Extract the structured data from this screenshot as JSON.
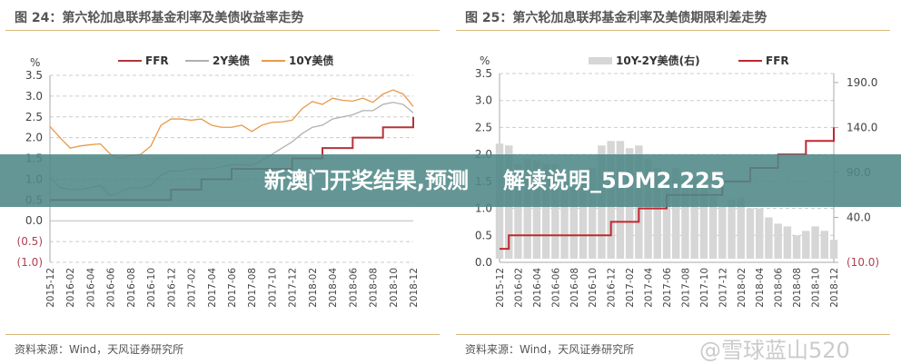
{
  "banner": {
    "text": "新澳门开奖结果,预测解读说明_5DM2.225"
  },
  "watermark": "@雪球蓝山520",
  "chart_data": [
    {
      "type": "line",
      "title": "图 24：第六轮加息联邦基金利率及美债收益率走势",
      "ylabel": "%",
      "ylim": [
        -1.0,
        3.5
      ],
      "yticks": [
        "3.5",
        "3.0",
        "2.5",
        "2.0",
        "1.5",
        "1.0",
        "0.5",
        "0.0",
        "(0.5)",
        "(1.0)"
      ],
      "xticks": [
        "2015-12",
        "2016-02",
        "2016-04",
        "2016-06",
        "2016-08",
        "2016-10",
        "2016-12",
        "2017-02",
        "2017-04",
        "2017-06",
        "2017-08",
        "2017-10",
        "2017-12",
        "2018-02",
        "2018-04",
        "2018-06",
        "2018-08",
        "2018-10",
        "2018-12"
      ],
      "legend": "top",
      "grid": true,
      "source": "资料来源：Wind，天风证券研究所",
      "series": [
        {
          "name": "FFR",
          "color": "#b5343a",
          "step": true,
          "values": [
            0.5,
            0.5,
            0.5,
            0.5,
            0.5,
            0.5,
            0.5,
            0.5,
            0.5,
            0.5,
            0.5,
            0.5,
            0.75,
            0.75,
            0.75,
            1.0,
            1.0,
            1.0,
            1.25,
            1.25,
            1.25,
            1.25,
            1.25,
            1.25,
            1.5,
            1.5,
            1.5,
            1.75,
            1.75,
            1.75,
            2.0,
            2.0,
            2.0,
            2.25,
            2.25,
            2.25,
            2.5
          ]
        },
        {
          "name": "2Y美债",
          "color": "#b0b0b0",
          "values": [
            1.05,
            0.8,
            0.75,
            0.75,
            0.8,
            0.85,
            0.6,
            0.7,
            0.8,
            0.78,
            0.85,
            1.1,
            1.2,
            1.2,
            1.25,
            1.25,
            1.25,
            1.3,
            1.35,
            1.35,
            1.33,
            1.45,
            1.6,
            1.75,
            1.9,
            2.1,
            2.25,
            2.3,
            2.45,
            2.5,
            2.55,
            2.65,
            2.65,
            2.8,
            2.85,
            2.8,
            2.6
          ]
        },
        {
          "name": "10Y美债",
          "color": "#e89a4a",
          "values": [
            2.27,
            2.0,
            1.75,
            1.8,
            1.83,
            1.85,
            1.6,
            1.5,
            1.57,
            1.6,
            1.8,
            2.3,
            2.45,
            2.45,
            2.42,
            2.45,
            2.3,
            2.25,
            2.25,
            2.3,
            2.15,
            2.3,
            2.37,
            2.38,
            2.42,
            2.7,
            2.87,
            2.8,
            2.95,
            2.9,
            2.88,
            2.95,
            2.85,
            3.05,
            3.15,
            3.05,
            2.75
          ]
        }
      ]
    },
    {
      "type": "bar+line",
      "title": "图 25：第六轮加息联邦基金利率及美债期限利差走势",
      "ylabel": "%",
      "ylim": [
        0,
        3.5
      ],
      "y2lim": [
        -10,
        200
      ],
      "yticks": [
        "3.5",
        "3.0",
        "2.5",
        "2.0",
        "1.5",
        "1.0",
        "0.5",
        "0.0"
      ],
      "y2ticks": [
        "190.0",
        "140.0",
        "90.0",
        "40.0",
        "(10.0)"
      ],
      "xticks": [
        "2015-12",
        "2016-02",
        "2016-04",
        "2016-06",
        "2016-08",
        "2016-10",
        "2016-12",
        "2017-02",
        "2017-04",
        "2017-06",
        "2017-08",
        "2017-10",
        "2017-12",
        "2018-02",
        "2018-04",
        "2018-06",
        "2018-08",
        "2018-10",
        "2018-12"
      ],
      "legend": "top",
      "grid": true,
      "source": "资料来源：Wind，天风证券研究所",
      "series": [
        {
          "name": "10Y-2Y美债(右)",
          "color": "#d6d6d6",
          "axis": "right",
          "values": [
            122,
            120,
            100,
            105,
            103,
            100,
            100,
            80,
            77,
            82,
            95,
            120,
            125,
            125,
            117,
            120,
            105,
            95,
            90,
            95,
            82,
            85,
            77,
            63,
            52,
            60,
            62,
            50,
            50,
            40,
            33,
            30,
            20,
            25,
            30,
            25,
            15
          ]
        },
        {
          "name": "FFR",
          "color": "#c0282e",
          "step": true,
          "values": [
            0.25,
            0.5,
            0.5,
            0.5,
            0.5,
            0.5,
            0.5,
            0.5,
            0.5,
            0.5,
            0.5,
            0.5,
            0.75,
            0.75,
            0.75,
            1.0,
            1.0,
            1.0,
            1.25,
            1.25,
            1.25,
            1.25,
            1.25,
            1.25,
            1.5,
            1.5,
            1.5,
            1.75,
            1.75,
            1.75,
            2.0,
            2.0,
            2.0,
            2.25,
            2.25,
            2.25,
            2.5
          ]
        }
      ]
    }
  ]
}
